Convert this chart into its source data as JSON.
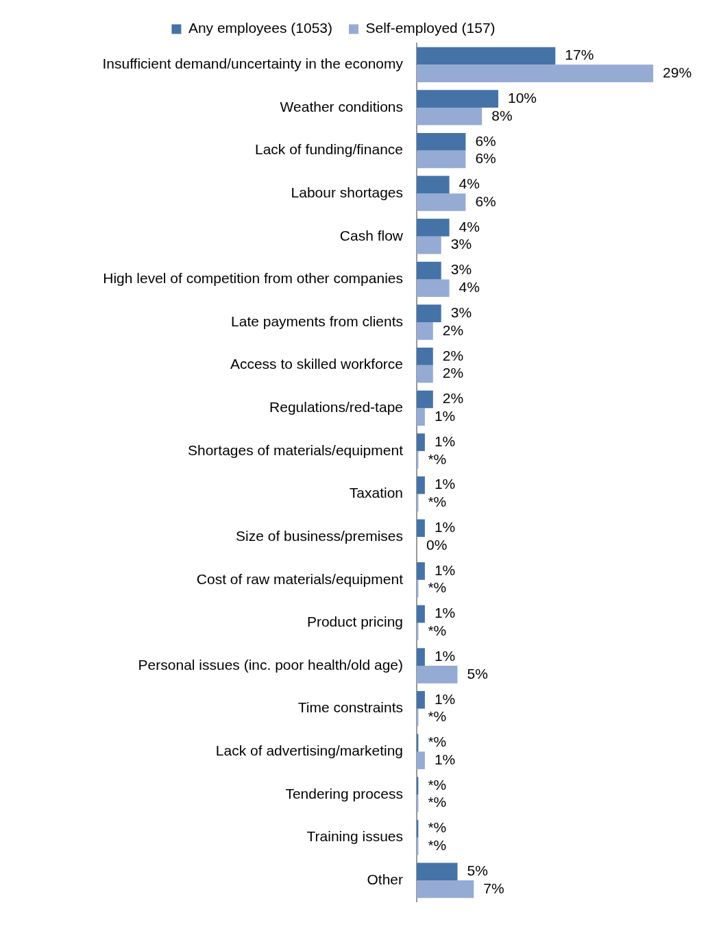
{
  "chart_data": {
    "type": "bar",
    "orientation": "horizontal",
    "legend": "top",
    "categories": [
      "Insufficient demand/uncertainty in the economy",
      "Weather conditions",
      "Lack of funding/finance",
      "Labour shortages",
      "Cash flow",
      "High level of competition from other companies",
      "Late payments from clients",
      "Access to skilled workforce",
      "Regulations/red-tape",
      "Shortages of materials/equipment",
      "Taxation",
      "Size of business/premises",
      "Cost of raw materials/equipment",
      "Product pricing",
      "Personal issues (inc. poor health/old age)",
      "Time constraints",
      "Lack of advertising/marketing",
      "Tendering process",
      "Training issues",
      "Other"
    ],
    "series": [
      {
        "name": "Any employees (1053)",
        "color": "#4573a7",
        "values": [
          17,
          10,
          6,
          4,
          4,
          3,
          3,
          2,
          2,
          1,
          1,
          1,
          1,
          1,
          1,
          1,
          0.2,
          0.2,
          0.2,
          5
        ],
        "value_labels": [
          "17%",
          "10%",
          "6%",
          "4%",
          "4%",
          "3%",
          "3%",
          "2%",
          "2%",
          "1%",
          "1%",
          "1%",
          "1%",
          "1%",
          "1%",
          "1%",
          "*%",
          "*%",
          "*%",
          "5%"
        ]
      },
      {
        "name": "Self-employed (157)",
        "color": "#95abd3",
        "values": [
          29,
          8,
          6,
          6,
          3,
          4,
          2,
          2,
          1,
          0.2,
          0.2,
          0,
          0.2,
          0.2,
          5,
          0.2,
          1,
          0.2,
          0.2,
          7
        ],
        "value_labels": [
          "29%",
          "8%",
          "6%",
          "6%",
          "3%",
          "4%",
          "2%",
          "2%",
          "1%",
          "*%",
          "*%",
          "0%",
          "*%",
          "*%",
          "5%",
          "*%",
          "1%",
          "*%",
          "*%",
          "7%"
        ]
      }
    ]
  }
}
